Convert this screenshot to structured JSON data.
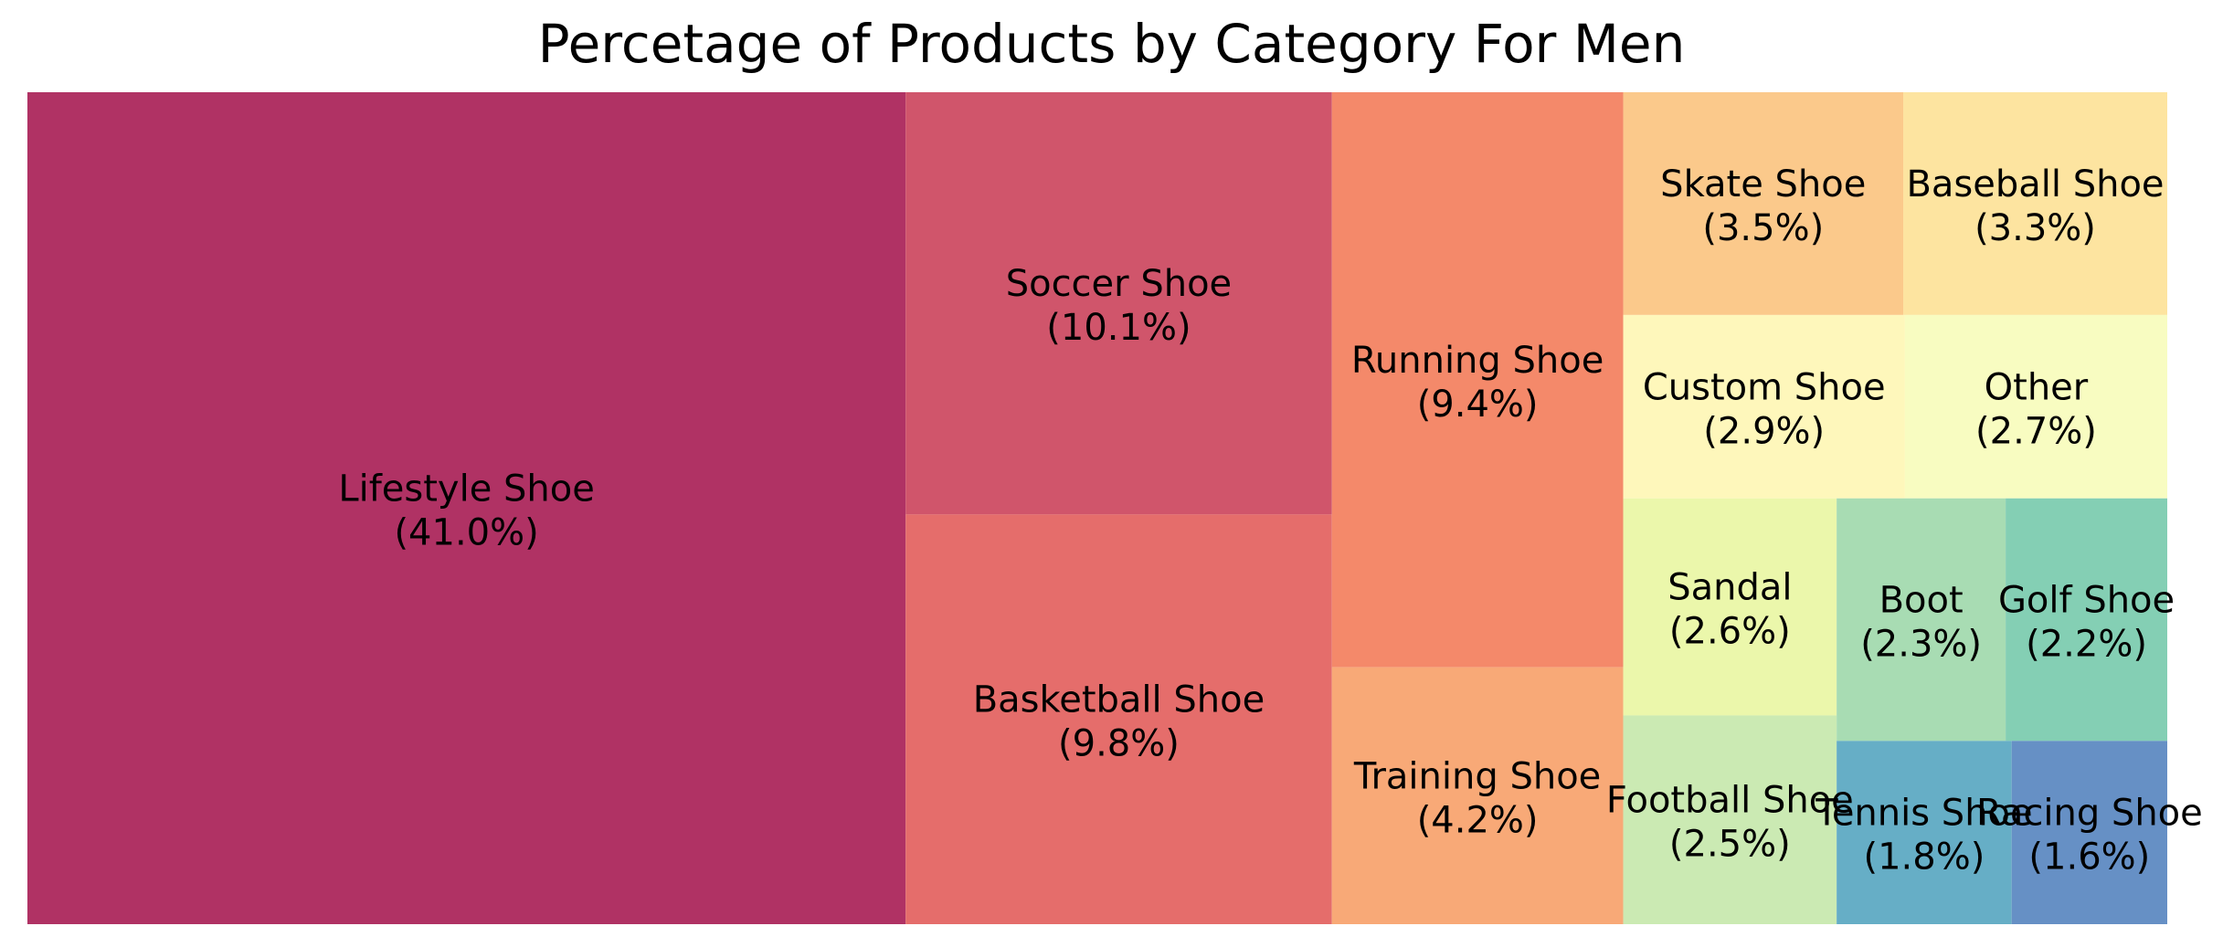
{
  "chart_data": {
    "type": "treemap",
    "title": "Percetage of Products by Category For Men",
    "items": [
      {
        "label": "Lifestyle Shoe",
        "pct_label": "(41.0%)",
        "value": 41.0,
        "color": "#b03264"
      },
      {
        "label": "Soccer Shoe",
        "pct_label": "(10.1%)",
        "value": 10.1,
        "color": "#d0556b"
      },
      {
        "label": "Basketball Shoe",
        "pct_label": "(9.8%)",
        "value": 9.8,
        "color": "#e56d6b"
      },
      {
        "label": "Running Shoe",
        "pct_label": "(9.4%)",
        "value": 9.4,
        "color": "#f4896a"
      },
      {
        "label": "Training Shoe",
        "pct_label": "(4.2%)",
        "value": 4.2,
        "color": "#f8a977"
      },
      {
        "label": "Skate Shoe",
        "pct_label": "(3.5%)",
        "value": 3.5,
        "color": "#fbc98b"
      },
      {
        "label": "Baseball Shoe",
        "pct_label": "(3.3%)",
        "value": 3.3,
        "color": "#fde4a0"
      },
      {
        "label": "Custom Shoe",
        "pct_label": "(2.9%)",
        "value": 2.9,
        "color": "#fef7bb"
      },
      {
        "label": "Other",
        "pct_label": "(2.7%)",
        "value": 2.7,
        "color": "#f8fcc1"
      },
      {
        "label": "Sandal",
        "pct_label": "(2.6%)",
        "value": 2.6,
        "color": "#ebf7ab"
      },
      {
        "label": "Football Shoe",
        "pct_label": "(2.5%)",
        "value": 2.5,
        "color": "#cbeab3"
      },
      {
        "label": "Boot",
        "pct_label": "(2.3%)",
        "value": 2.3,
        "color": "#a8dcb3"
      },
      {
        "label": "Golf Shoe",
        "pct_label": "(2.2%)",
        "value": 2.2,
        "color": "#84cfb4"
      },
      {
        "label": "Tennis Shoe",
        "pct_label": "(1.8%)",
        "value": 1.8,
        "color": "#66aec6"
      },
      {
        "label": "Racing Shoe",
        "pct_label": "(1.6%)",
        "value": 1.6,
        "color": "#6690c5"
      }
    ]
  }
}
